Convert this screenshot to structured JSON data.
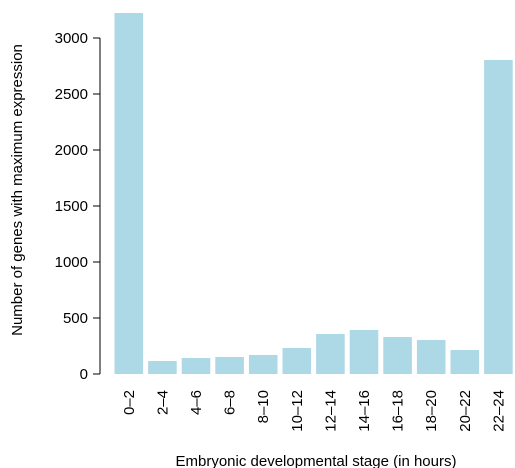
{
  "chart_data": {
    "type": "bar",
    "xlabel": "Embryonic developmental stage (in hours)",
    "ylabel": "Number of genes with maximum expression",
    "categories": [
      "0–2",
      "2–4",
      "4–6",
      "6–8",
      "8–10",
      "10–12",
      "12–14",
      "14–16",
      "16–18",
      "18–20",
      "20–22",
      "22–24"
    ],
    "values": [
      3223,
      116,
      143,
      152,
      170,
      232,
      357,
      393,
      330,
      304,
      214,
      2804
    ],
    "color": "#add8e6",
    "ylim": [
      0,
      3300
    ],
    "yticks": [
      0,
      500,
      1000,
      1500,
      2000,
      2500,
      3000
    ]
  }
}
